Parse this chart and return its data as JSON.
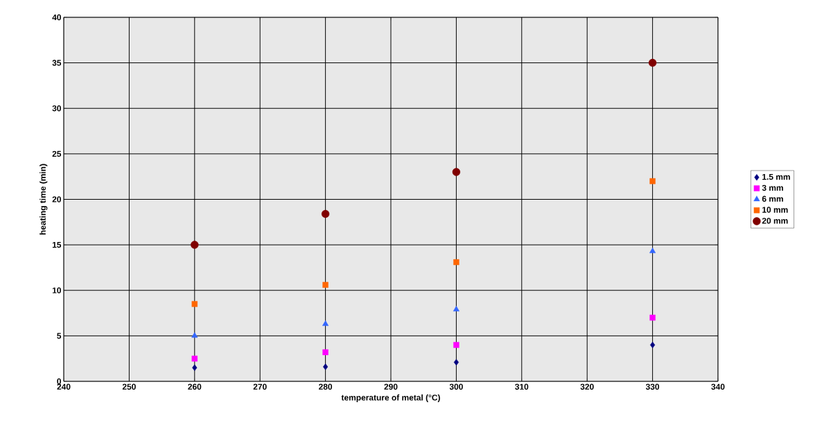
{
  "chart_data": {
    "type": "scatter",
    "xlabel": "temperature of metal (°C)",
    "ylabel": "heating time (min)",
    "x": [
      260,
      280,
      300,
      330
    ],
    "series": [
      {
        "name": "1.5 mm",
        "color": "#000080",
        "marker": "diamond",
        "values": [
          1.5,
          1.6,
          2.1,
          4.0
        ]
      },
      {
        "name": "3 mm",
        "color": "#ff00ff",
        "marker": "square",
        "values": [
          2.5,
          3.2,
          4.0,
          7.0
        ]
      },
      {
        "name": "6 mm",
        "color": "#3366ff",
        "marker": "triangle",
        "values": [
          5.0,
          6.3,
          7.9,
          14.3
        ]
      },
      {
        "name": "10 mm",
        "color": "#ff6600",
        "marker": "square",
        "values": [
          8.5,
          10.6,
          13.1,
          22.0
        ]
      },
      {
        "name": "20 mm",
        "color": "#800000",
        "marker": "circle",
        "values": [
          15.0,
          18.4,
          23.0,
          35.0
        ]
      }
    ],
    "xlim": [
      240,
      340
    ],
    "xticks": [
      240,
      250,
      260,
      270,
      280,
      290,
      300,
      310,
      320,
      330,
      340
    ],
    "ylim": [
      0,
      40
    ],
    "yticks": [
      0,
      5,
      10,
      15,
      20,
      25,
      30,
      35,
      40
    ],
    "grid": true,
    "legend": "right"
  }
}
